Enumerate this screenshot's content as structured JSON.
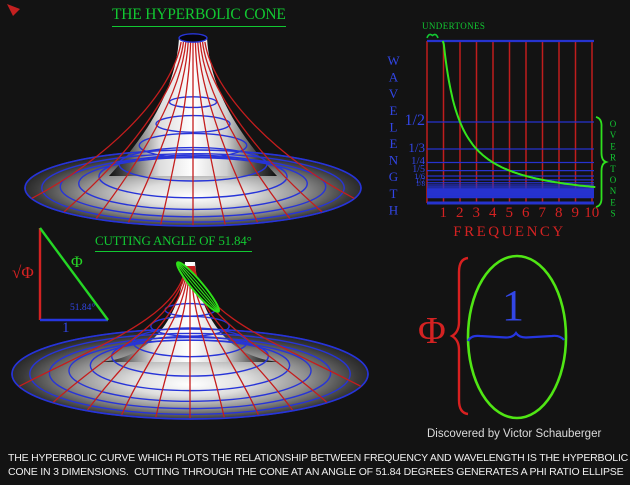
{
  "titles": {
    "main": "THE HYPERBOLIC CONE",
    "cutting": "CUTTING ANGLE OF 51.84°"
  },
  "graph": {
    "undertones": "UNDERTONES",
    "overtones": "OVERTONES",
    "ylabel": "WAVELENGTH",
    "xlabel": "FREQUENCY",
    "y_ticks": [
      "1/2",
      "1/3",
      "1/4",
      "1/5",
      "1/6",
      "1/7",
      "1/8"
    ],
    "x_ticks": [
      "1",
      "2",
      "3",
      "4",
      "5",
      "6",
      "7",
      "8",
      "9",
      "10"
    ]
  },
  "chart_data": {
    "type": "line",
    "x": [
      1,
      2,
      3,
      4,
      5,
      6,
      7,
      8,
      9,
      10
    ],
    "y": [
      1,
      0.5,
      0.333,
      0.25,
      0.2,
      0.167,
      0.143,
      0.125,
      0.111,
      0.1
    ],
    "relation": "wavelength = 1 / frequency (hyperbola)",
    "xlabel": "FREQUENCY",
    "ylabel": "WAVELENGTH",
    "x_tick_labels": [
      "1",
      "2",
      "3",
      "4",
      "5",
      "6",
      "7",
      "8",
      "9",
      "10"
    ],
    "y_tick_labels": [
      "1/2",
      "1/3",
      "1/4",
      "1/5",
      "1/6",
      "1/7",
      "1/8"
    ],
    "xlim": [
      0,
      10
    ],
    "ylim": [
      0,
      1
    ],
    "annotations": [
      "UNDERTONES",
      "OVERTONES"
    ],
    "grid": {
      "vertical_lines_at_x": [
        0,
        1,
        2,
        3,
        4,
        5,
        6,
        7,
        8,
        9,
        10
      ],
      "vertical_color": "#c01d1d",
      "horizontal_lines_at_y": "1/n for n = 1..30 (harmonic series)",
      "horizontal_color": "#2633cf"
    },
    "legend_position": "none",
    "curve_color": "#35e61c"
  },
  "triangle": {
    "vertical_label": "√Φ",
    "hypotenuse_label": "Φ",
    "base_label": "1",
    "angle_label": "51.84°"
  },
  "ellipse_diagram": {
    "phi": "Φ",
    "one": "1",
    "credit": "Discovered by Victor Schauberger"
  },
  "caption": {
    "line1": "THE HYPERBOLIC CURVE WHICH PLOTS THE RELATIONSHIP BETWEEN FREQUENCY AND WAVELENGTH IS THE HYPERBOLIC",
    "line2": "CONE IN 3 DIMENSIONS.  CUTTING THROUGH THE CONE AT AN ANGLE OF 51.84 DEGREES GENERATES A PHI RATIO ELLIPSE"
  },
  "colors": {
    "background": "#131313",
    "green": "#12c832",
    "curve_green": "#35e61c",
    "ellipse_green": "#50e614",
    "red": "#d42222",
    "grid_red": "#c01d1d",
    "blue": "#3246e6",
    "grid_blue": "#2633cf",
    "white": "#efefef"
  }
}
